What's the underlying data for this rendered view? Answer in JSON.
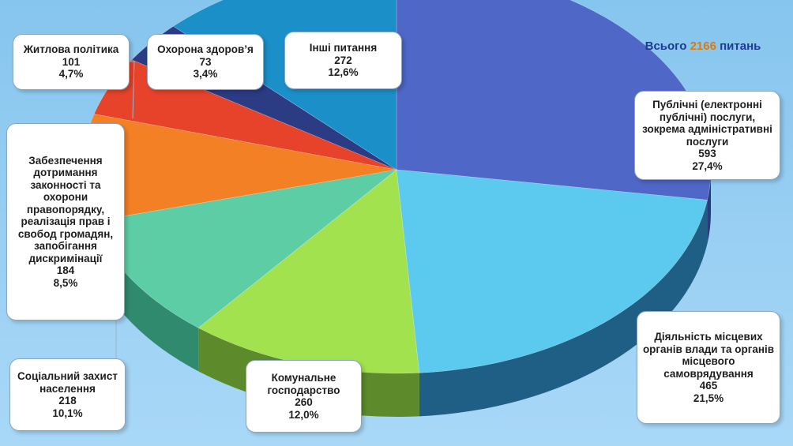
{
  "total": {
    "prefix": "Всього",
    "number": "2166",
    "suffix": "питань"
  },
  "chart_data": {
    "type": "pie",
    "total": 2166,
    "slices": [
      {
        "label": "Публічні (електронні публічні) послуги, зокрема адміністративні послуги",
        "value": 593,
        "percent": "27,4%",
        "color": "#4f67c6",
        "side": "#2a3a7a"
      },
      {
        "label": "Діяльність місцевих органів влади та органів місцевого самоврядування",
        "value": 465,
        "percent": "21,5%",
        "color": "#5cc9ee",
        "side": "#1f5f86"
      },
      {
        "label": "Комунальне господарство",
        "value": 260,
        "percent": "12,0%",
        "color": "#a1e24e",
        "side": "#5d8a2a"
      },
      {
        "label": "Соціальний захист населення",
        "value": 218,
        "percent": "10,1%",
        "color": "#5ccda5",
        "side": "#2f8a6e"
      },
      {
        "label": "Забезпечення дотримання законності та охорони правопорядку, реалізація прав і свобод громадян, запобігання дискримінації",
        "value": 184,
        "percent": "8,5%",
        "color": "#f48026",
        "side": "#9a4d15"
      },
      {
        "label": "Житлова політика",
        "value": 101,
        "percent": "4,7%",
        "color": "#e6432a",
        "side": "#8d2616"
      },
      {
        "label": "Охорона здоров’я",
        "value": 73,
        "percent": "3,4%",
        "color": "#2b3b84",
        "side": "#151d45"
      },
      {
        "label": "Інші питання",
        "value": 272,
        "percent": "12,6%",
        "color": "#1a8fc8",
        "side": "#0f5578"
      }
    ]
  },
  "labels": [
    {
      "name": "label-public-services",
      "title": "Публічні (електронні публічні) послуги, зокрема адміністративні послуги",
      "value": "593",
      "percent": "27,4%"
    },
    {
      "name": "label-local-authorities",
      "title": "Діяльність місцевих органів влади та органів місцевого самоврядування",
      "value": "465",
      "percent": "21,5%"
    },
    {
      "name": "label-communal",
      "title": "Комунальне господарство",
      "value": "260",
      "percent": "12,0%"
    },
    {
      "name": "label-social-protection",
      "title": "Соціальний захист населення",
      "value": "218",
      "percent": "10,1%"
    },
    {
      "name": "label-legality",
      "title": "Забезпечення дотримання законності та охорони правопорядку, реалізація прав і свобод громадян, запобігання дискримінації",
      "value": "184",
      "percent": "8,5%"
    },
    {
      "name": "label-housing",
      "title": "Житлова політика",
      "value": "101",
      "percent": "4,7%"
    },
    {
      "name": "label-health",
      "title": "Охорона здоров’я",
      "value": "73",
      "percent": "3,4%"
    },
    {
      "name": "label-other",
      "title": "Інші питання",
      "value": "272",
      "percent": "12,6%"
    }
  ]
}
